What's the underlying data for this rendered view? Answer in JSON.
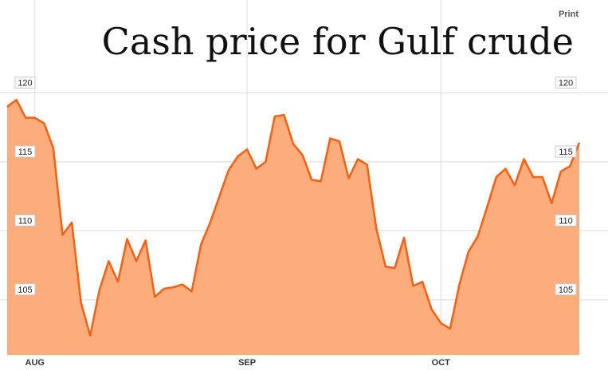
{
  "print_label": "Print",
  "chart_data": {
    "type": "area",
    "title": "Cash price for Gulf crude",
    "xlabel": "",
    "ylabel": "",
    "ylim": [
      101,
      122
    ],
    "y_ticks": [
      105,
      110,
      115,
      120
    ],
    "y_tick_labels": [
      "105",
      "110",
      "115",
      "120"
    ],
    "x_tick_labels": [
      "AUG",
      "SEP",
      "OCT"
    ],
    "x_tick_index": [
      3,
      26,
      47
    ],
    "grid": true,
    "colors": {
      "fill": "#fdac7c",
      "line": "#f0641a"
    },
    "series": [
      {
        "values": [
          119.0,
          119.5,
          118.2,
          118.2,
          117.8,
          116.0,
          109.7,
          110.6,
          104.8,
          102.4,
          105.7,
          107.8,
          106.3,
          109.4,
          107.8,
          109.3,
          105.2,
          105.8,
          105.9,
          106.1,
          105.6,
          109.0,
          110.6,
          112.5,
          114.4,
          115.4,
          115.9,
          114.5,
          115.0,
          118.3,
          118.4,
          116.3,
          115.5,
          113.7,
          113.6,
          116.7,
          116.5,
          113.8,
          115.2,
          114.8,
          110.2,
          107.4,
          107.3,
          109.5,
          106.0,
          106.3,
          104.3,
          103.3,
          102.9,
          106.1,
          108.5,
          109.6,
          111.7,
          113.9,
          114.5,
          113.3,
          115.2,
          113.9,
          113.9,
          112.0,
          114.3,
          114.7,
          116.4
        ]
      }
    ]
  }
}
